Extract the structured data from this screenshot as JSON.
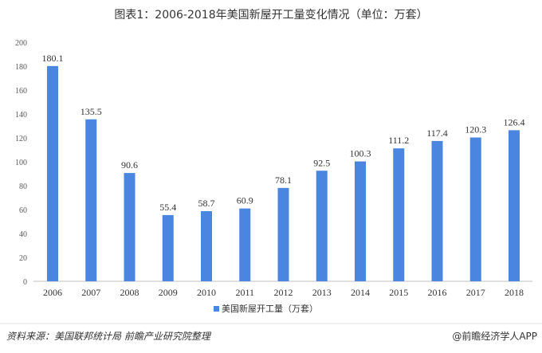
{
  "chart_data": {
    "type": "bar",
    "title": "图表1：2006-2018年美国新屋开工量变化情况（单位：万套）",
    "categories": [
      "2006",
      "2007",
      "2008",
      "2009",
      "2010",
      "2011",
      "2012",
      "2013",
      "2014",
      "2015",
      "2016",
      "2017",
      "2018"
    ],
    "series": [
      {
        "name": "美国新屋开工量（万套）",
        "values": [
          180.1,
          135.5,
          90.6,
          55.4,
          58.7,
          60.9,
          78.1,
          92.5,
          100.3,
          111.2,
          117.4,
          120.3,
          126.4
        ]
      }
    ],
    "xlabel": "",
    "ylabel": "",
    "ylim": [
      0,
      200
    ],
    "yticks": [
      0,
      20,
      40,
      60,
      80,
      100,
      120,
      140,
      160,
      180,
      200
    ],
    "grid": false,
    "legend": "bottom",
    "color": "#4A86E0"
  },
  "footer": {
    "source": "资料来源：美国联邦统计局 前瞻产业研究院整理",
    "brand": "@前瞻经济学人APP"
  }
}
